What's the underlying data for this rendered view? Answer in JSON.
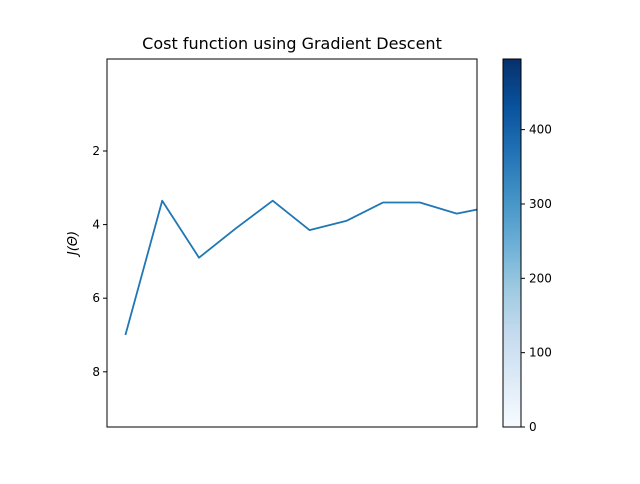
{
  "chart_data": {
    "type": "line",
    "title": "Cost function using Gradient Descent",
    "xlabel": "",
    "ylabel": "J(Θ)",
    "ylim": [
      9.5,
      -0.5
    ],
    "y_inverted": true,
    "yticks": [
      2,
      4,
      6,
      8
    ],
    "x_ticks_visible": false,
    "grid": false,
    "series": [
      {
        "color": "#1f77b4",
        "x": [
          0,
          1,
          2,
          3,
          4,
          5,
          6,
          7,
          8,
          9,
          10
        ],
        "values": [
          7.0,
          3.35,
          4.9,
          4.1,
          3.35,
          4.15,
          3.9,
          3.4,
          3.4,
          3.7,
          3.5
        ]
      }
    ],
    "colorbar": {
      "colormap": "Blues",
      "range": [
        0,
        495
      ],
      "ticks": [
        0,
        100,
        200,
        300,
        400
      ]
    }
  }
}
